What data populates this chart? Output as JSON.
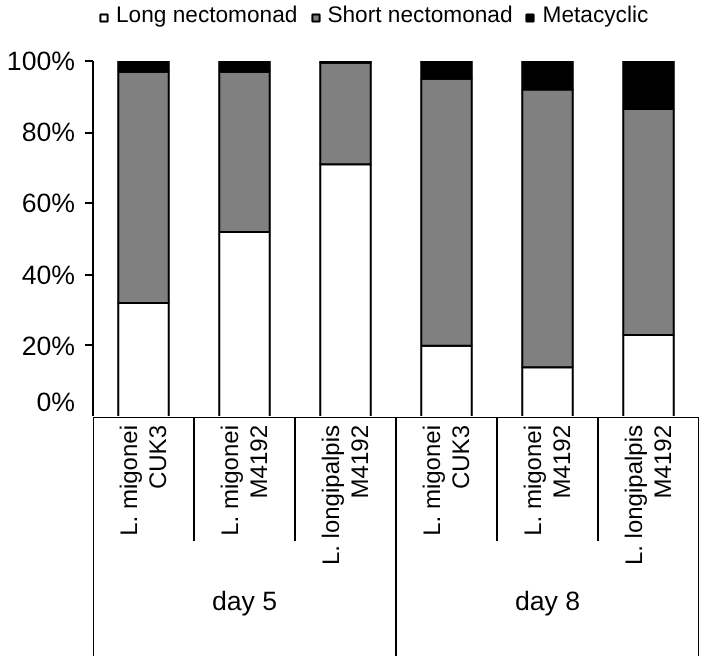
{
  "chart_data": {
    "type": "bar",
    "stacked": true,
    "categories": [
      "L. migonei\nCUK3",
      "L. migonei\nM4192",
      "L. longipalpis\nM4192",
      "L. migonei\nCUK3",
      "L. migonei\nM4192",
      "L. longipalpis\nM4192"
    ],
    "series": [
      {
        "name": "Long nectomonad",
        "color": "#ffffff",
        "values": [
          32,
          52,
          71,
          20,
          14,
          23
        ]
      },
      {
        "name": "Short nectomonad",
        "color": "#808080",
        "values": [
          65,
          45,
          28.5,
          75,
          78,
          63.5
        ]
      },
      {
        "name": "Metacyclic",
        "color": "#000000",
        "values": [
          3,
          3,
          0.5,
          5,
          8,
          13.5
        ]
      }
    ],
    "ylim": [
      0,
      100
    ],
    "yticks": [
      {
        "value": 0,
        "label": "0%"
      },
      {
        "value": 20,
        "label": "20%"
      },
      {
        "value": 40,
        "label": "40%"
      },
      {
        "value": 60,
        "label": "60%"
      },
      {
        "value": 80,
        "label": "80%"
      },
      {
        "value": 100,
        "label": "100%"
      }
    ],
    "annotations": [
      "day 5",
      "day 8"
    ],
    "legend": "top",
    "grid": false
  }
}
